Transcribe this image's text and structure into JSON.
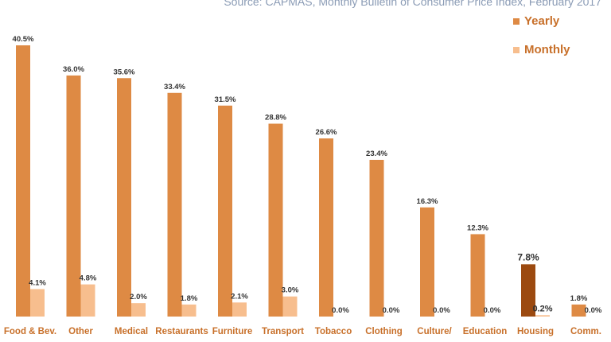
{
  "source": "Source: CAPMAS, Monthly Bulletin of Consumer Price Index, February 2017",
  "colors": {
    "yearly": "#de8a44",
    "monthly": "#f7be8e",
    "highlight": "#9c4a10",
    "label_text": "#c8702a",
    "source_text": "#8a9bb5"
  },
  "chart_data": {
    "type": "bar",
    "categories": [
      "Food & Bev.",
      "Other",
      "Medical",
      "Restaurants",
      "Furniture",
      "Transport",
      "Tobacco",
      "Clothing",
      "Culture/",
      "Education",
      "Housing",
      "Comm."
    ],
    "series": [
      {
        "name": "Yearly",
        "values": [
          40.5,
          36.0,
          35.6,
          33.4,
          31.5,
          28.8,
          26.6,
          23.4,
          16.3,
          12.3,
          7.8,
          1.8
        ],
        "labels": [
          "40.5%",
          "36.0%",
          "35.6%",
          "33.4%",
          "31.5%",
          "28.8%",
          "26.6%",
          "23.4%",
          "16.3%",
          "12.3%",
          "7.8%",
          "1.8%"
        ]
      },
      {
        "name": "Monthly",
        "values": [
          4.1,
          4.8,
          2.0,
          1.8,
          2.1,
          3.0,
          0.0,
          0.0,
          0.0,
          0.0,
          0.2,
          0.0
        ],
        "labels": [
          "4.1%",
          "4.8%",
          "2.0%",
          "1.8%",
          "2.1%",
          "3.0%",
          "0.0%",
          "0.0%",
          "0.0%",
          "0.0%",
          "0.2%",
          "0.0%"
        ]
      }
    ],
    "highlight_category": "Housing",
    "ylim": [
      0,
      40.5
    ],
    "grid": false,
    "legend_position": "top-right"
  }
}
